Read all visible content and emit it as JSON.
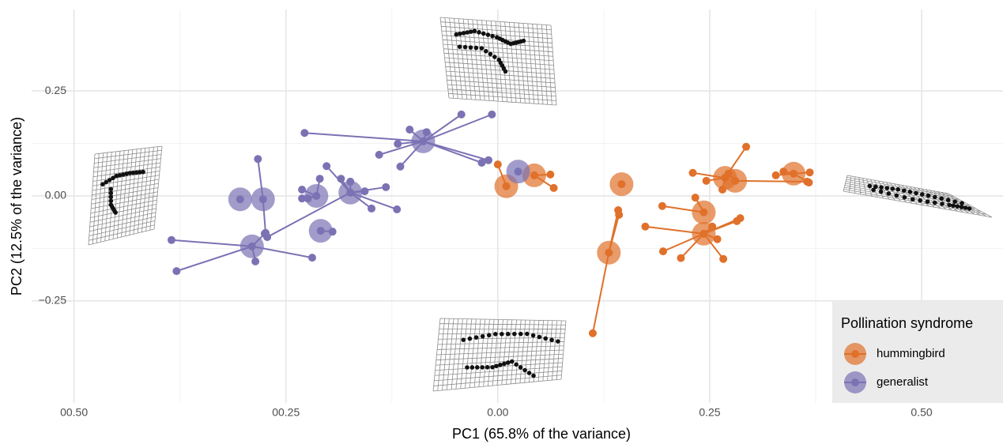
{
  "chart_data": {
    "type": "star-scatter",
    "x_label": "PC1 (65.8% of the variance)",
    "y_label": "PC2 (12.5% of the variance)",
    "legend_title": "Pollination syndrome",
    "legend": "bottom-right",
    "grid": true,
    "xlim": [
      -0.55,
      0.596
    ],
    "ylim": [
      -0.493,
      0.444
    ],
    "xticks": [
      {
        "value": -0.5,
        "label": "00.50"
      },
      {
        "value": -0.25,
        "label": "00.25"
      },
      {
        "value": 0,
        "label": "0.00"
      },
      0.25,
      {
        "value": 0.5,
        "label": "0.50"
      }
    ],
    "yticks": [
      {
        "value": -0.25,
        "label": "−0.25"
      },
      {
        "value": 0,
        "label": "0.00"
      },
      0.25
    ],
    "series": [
      {
        "name": "hummingbird",
        "color": "#e0702a",
        "groups": [
          {
            "cx": 0.01,
            "cy": 0.023,
            "x": [
              0.0
            ],
            "y": [
              0.075
            ]
          },
          {
            "cx": 0.043,
            "cy": 0.049,
            "x": [
              0.062,
              0.066
            ],
            "y": [
              0.051,
              0.019
            ]
          },
          {
            "cx": 0.146,
            "cy": 0.028,
            "x": [],
            "y": []
          },
          {
            "cx": 0.131,
            "cy": -0.135,
            "x": [
              0.112,
              0.142,
              0.143
            ],
            "y": [
              -0.327,
              -0.034,
              -0.045
            ]
          },
          {
            "cx": 0.243,
            "cy": -0.039,
            "x": [
              0.194,
              0.233
            ],
            "y": [
              -0.024,
              -0.004
            ]
          },
          {
            "cx": 0.243,
            "cy": -0.09,
            "x": [
              0.174,
              0.195,
              0.216,
              0.253,
              0.259,
              0.266,
              0.282,
              0.286
            ],
            "y": [
              -0.073,
              -0.132,
              -0.148,
              -0.073,
              -0.103,
              -0.15,
              -0.06,
              -0.053
            ]
          },
          {
            "cx": 0.268,
            "cy": 0.043,
            "x": [
              0.293,
              0.23,
              0.246,
              0.265
            ],
            "y": [
              0.117,
              0.055,
              0.036,
              0.015
            ]
          },
          {
            "cx": 0.28,
            "cy": 0.036,
            "x": [
              0.365,
              0.272
            ],
            "y": [
              0.034,
              0.053
            ]
          },
          {
            "cx": 0.349,
            "cy": 0.053,
            "x": [
              0.328,
              0.337,
              0.368,
              0.367
            ],
            "y": [
              0.049,
              0.058,
              0.056,
              0.032
            ]
          }
        ]
      },
      {
        "name": "generalist",
        "color": "#7b72b4",
        "groups": [
          {
            "cx": -0.088,
            "cy": 0.13,
            "x": [
              -0.043,
              -0.007,
              -0.104,
              -0.084,
              -0.118,
              -0.14,
              -0.115,
              -0.228,
              -0.019,
              -0.011
            ],
            "y": [
              0.194,
              0.194,
              0.158,
              0.152,
              0.124,
              0.098,
              0.07,
              0.15,
              0.079,
              0.085
            ]
          },
          {
            "cx": -0.174,
            "cy": 0.008,
            "x": [
              -0.202,
              -0.185,
              -0.174,
              -0.157,
              -0.132,
              -0.149,
              -0.119,
              -0.272
            ],
            "y": [
              0.071,
              0.041,
              0.034,
              0.011,
              0.021,
              -0.03,
              -0.032,
              -0.098
            ]
          },
          {
            "cx": -0.214,
            "cy": 0.0,
            "x": [
              -0.231,
              -0.231,
              -0.224,
              -0.21
            ],
            "y": [
              0.015,
              -0.006,
              -0.006,
              0.041
            ]
          },
          {
            "cx": -0.209,
            "cy": -0.083,
            "x": [
              -0.195
            ],
            "y": [
              -0.085
            ]
          },
          {
            "cx": -0.29,
            "cy": -0.12,
            "x": [
              -0.385,
              -0.379,
              -0.286,
              -0.275,
              -0.219
            ],
            "y": [
              -0.105,
              -0.179,
              -0.156,
              -0.09,
              -0.147
            ]
          },
          {
            "cx": -0.277,
            "cy": -0.008,
            "x": [
              -0.283,
              -0.274
            ],
            "y": [
              0.088,
              -0.088
            ]
          },
          {
            "cx": -0.304,
            "cy": -0.008,
            "x": [],
            "y": []
          },
          {
            "cx": 0.024,
            "cy": 0.058,
            "x": [],
            "y": []
          }
        ]
      }
    ]
  }
}
